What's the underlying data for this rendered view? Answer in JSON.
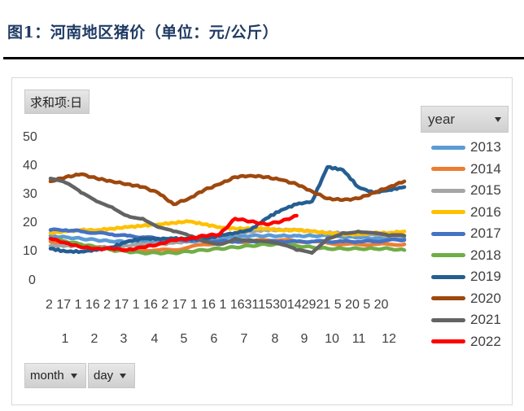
{
  "figure": {
    "title": "图1：河南地区猪价（单位：元/公斤）"
  },
  "pivot": {
    "value_field_button": "求和项:日",
    "legend_field_button": "year",
    "axis_field_buttons": [
      "month",
      "day"
    ]
  },
  "chart_data": {
    "type": "line",
    "title": "河南地区猪价（单位：元/公斤）",
    "xlabel": "month / day",
    "ylabel": "",
    "ylim": [
      0,
      50
    ],
    "yticks": [
      0,
      10,
      20,
      30,
      40,
      50
    ],
    "grid": false,
    "legend_position": "right",
    "x_day_tick_labels": "2 17 1 16 2 17 1 16 2 17 1 16 1 16311530142921 5 20 5 20",
    "x_month_labels": [
      "1",
      "2",
      "3",
      "4",
      "5",
      "6",
      "7",
      "8",
      "9",
      "10",
      "11",
      "12"
    ],
    "x": [
      1,
      1.5,
      2,
      2.5,
      3,
      3.5,
      4,
      4.5,
      5,
      5.5,
      6,
      6.5,
      7,
      7.5,
      8,
      8.5,
      9,
      9.5,
      10,
      10.5,
      11,
      11.5,
      12,
      12.5
    ],
    "series": [
      {
        "name": "2013",
        "color": "#5b9bd5",
        "values": [
          16,
          15.5,
          15,
          14.5,
          14,
          14,
          14,
          14,
          14,
          14,
          14.5,
          15,
          15.5,
          16,
          16,
          16,
          16,
          16,
          16,
          15.5,
          15.5,
          15,
          15,
          15
        ]
      },
      {
        "name": "2014",
        "color": "#ed7d31",
        "values": [
          14,
          13,
          12.5,
          12,
          11.5,
          11,
          11,
          11,
          11,
          12,
          13,
          13.5,
          14,
          14,
          14.5,
          14.5,
          14,
          14,
          13.5,
          13,
          13,
          13,
          13,
          13
        ]
      },
      {
        "name": "2015",
        "color": "#a5a5a5",
        "values": [
          12.5,
          12.5,
          12.5,
          12,
          12,
          12.5,
          13,
          13,
          13.5,
          14,
          15,
          16,
          17,
          17.5,
          18,
          18,
          18,
          17.5,
          17,
          17,
          16.5,
          16.5,
          16,
          16
        ]
      },
      {
        "name": "2016",
        "color": "#ffc000",
        "values": [
          17,
          17.5,
          18,
          18,
          18.5,
          19,
          19.5,
          20,
          20.5,
          21,
          20,
          19,
          18.5,
          18.5,
          18.5,
          18,
          18,
          17.5,
          17,
          16.5,
          16.5,
          17,
          17,
          17.5
        ]
      },
      {
        "name": "2017",
        "color": "#4472c4",
        "values": [
          18,
          18,
          17.5,
          17,
          16.5,
          16,
          15.5,
          15,
          14.5,
          14.5,
          14,
          14,
          14,
          14,
          14,
          14,
          14,
          14,
          14,
          14,
          14,
          14,
          14.5,
          14.5
        ]
      },
      {
        "name": "2018",
        "color": "#70ad47",
        "values": [
          15,
          14,
          13,
          12,
          11,
          10.5,
          10,
          10,
          10,
          10.5,
          11,
          11.5,
          12,
          12.5,
          13,
          13,
          12.5,
          12,
          11.5,
          11.5,
          11.5,
          11.5,
          11.5,
          11
        ]
      },
      {
        "name": "2019",
        "color": "#255e91",
        "values": [
          11.5,
          10.5,
          10.5,
          11,
          12,
          14,
          15,
          15,
          15,
          15,
          15,
          16,
          17,
          18,
          22,
          25,
          27,
          28,
          40,
          39,
          33,
          31,
          32,
          33
        ]
      },
      {
        "name": "2020",
        "color": "#9e480e",
        "values": [
          35,
          36.5,
          37.5,
          36,
          35,
          34,
          33,
          31,
          27,
          29,
          32,
          34,
          36.5,
          37,
          36.5,
          35.5,
          34,
          31.5,
          29,
          28.5,
          29,
          31,
          33,
          35
        ]
      },
      {
        "name": "2021",
        "color": "#636363",
        "values": [
          36,
          34.5,
          31,
          28,
          26,
          23,
          22,
          19,
          17.5,
          16,
          14,
          13,
          15,
          14.5,
          14,
          13,
          11,
          10,
          15,
          17,
          17.5,
          17,
          16,
          16
        ]
      },
      {
        "name": "2022",
        "color": "#ff0000",
        "values": [
          15,
          13.5,
          12,
          11.5,
          11.5,
          11,
          12,
          13,
          14.5,
          15,
          16,
          16.5,
          22,
          21,
          20,
          21,
          23
        ]
      }
    ]
  }
}
